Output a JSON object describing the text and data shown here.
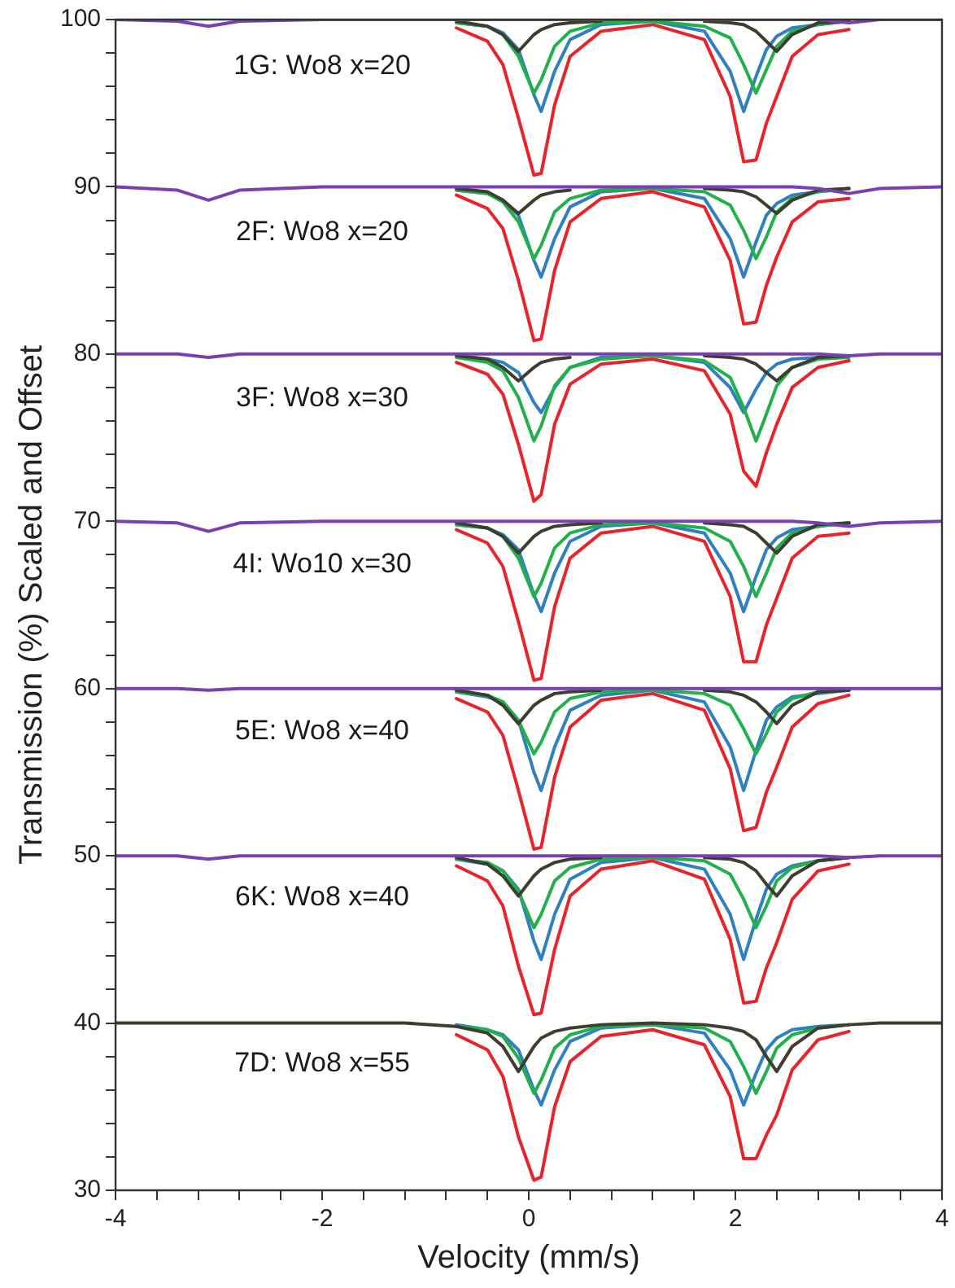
{
  "chart_data": {
    "type": "line",
    "xlabel": "Velocity (mm/s)",
    "ylabel": "Transmission (%) Scaled and Offset",
    "x": [
      -4,
      -3.4,
      -3.1,
      -2.8,
      -2,
      -1.2,
      -0.7,
      -0.4,
      -0.25,
      -0.1,
      0.05,
      0.12,
      0.25,
      0.4,
      0.7,
      1.2,
      1.7,
      1.95,
      2.08,
      2.2,
      2.3,
      2.4,
      2.55,
      2.8,
      3.1,
      3.4,
      4
    ],
    "xlim": [
      -4,
      4
    ],
    "xticks": [
      -4,
      {
        "value": -3.6,
        "label": null
      },
      {
        "value": -3.2,
        "label": null
      },
      {
        "value": -2.8,
        "label": null
      },
      {
        "value": -2.4,
        "label": null
      },
      -2,
      {
        "value": -1.6,
        "label": null
      },
      {
        "value": -1.2,
        "label": null
      },
      {
        "value": -0.8,
        "label": null
      },
      {
        "value": -0.4,
        "label": null
      },
      0,
      {
        "value": 0.4,
        "label": null
      },
      {
        "value": 0.8,
        "label": null
      },
      {
        "value": 1.2,
        "label": null
      },
      {
        "value": 1.6,
        "label": null
      },
      2,
      {
        "value": 2.4,
        "label": null
      },
      {
        "value": 2.8,
        "label": null
      },
      {
        "value": 3.2,
        "label": null
      },
      {
        "value": 3.6,
        "label": null
      },
      4
    ],
    "ylim": [
      30,
      100
    ],
    "yticks": [
      30,
      {
        "value": 32,
        "label": null
      },
      {
        "value": 34,
        "label": null
      },
      {
        "value": 36,
        "label": null
      },
      {
        "value": 38,
        "label": null
      },
      40,
      {
        "value": 42,
        "label": null
      },
      {
        "value": 44,
        "label": null
      },
      {
        "value": 46,
        "label": null
      },
      {
        "value": 48,
        "label": null
      },
      50,
      {
        "value": 52,
        "label": null
      },
      {
        "value": 54,
        "label": null
      },
      {
        "value": 56,
        "label": null
      },
      {
        "value": 58,
        "label": null
      },
      60,
      {
        "value": 62,
        "label": null
      },
      {
        "value": 64,
        "label": null
      },
      {
        "value": 66,
        "label": null
      },
      {
        "value": 68,
        "label": null
      },
      70,
      {
        "value": 72,
        "label": null
      },
      {
        "value": 74,
        "label": null
      },
      {
        "value": 76,
        "label": null
      },
      {
        "value": 78,
        "label": null
      },
      80,
      {
        "value": 82,
        "label": null
      },
      {
        "value": 84,
        "label": null
      },
      {
        "value": 86,
        "label": null
      },
      {
        "value": 88,
        "label": null
      },
      90,
      {
        "value": 92,
        "label": null
      },
      {
        "value": 94,
        "label": null
      },
      {
        "value": 96,
        "label": null
      },
      {
        "value": 98,
        "label": null
      },
      100
    ],
    "legend": false,
    "marker": "none",
    "line_style": "solid",
    "annotations": [
      "1G: Wo8 x=20",
      "2F: Wo8 x=20",
      "3F: Wo8 x=30",
      "4I: Wo10 x=30",
      "5E: Wo8 x=40",
      "6K: Wo8 x=40",
      "7D: Wo8 x=55"
    ],
    "series": [
      {
        "color": "#e8232a",
        "values": [
          null,
          null,
          null,
          null,
          null,
          null,
          99.5,
          98.7,
          97.3,
          94.1,
          90.7,
          90.8,
          94.9,
          97.8,
          99.3,
          99.7,
          98.8,
          95.4,
          91.5,
          91.6,
          93.8,
          95.4,
          97.8,
          99.1,
          99.4,
          null,
          null
        ]
      },
      {
        "color": "#2f7fc1",
        "values": [
          null,
          null,
          null,
          null,
          null,
          null,
          99.8,
          99.6,
          99.2,
          98.2,
          95.5,
          94.5,
          96.9,
          98.8,
          99.7,
          99.9,
          99.3,
          96.9,
          94.5,
          96.6,
          98.2,
          99,
          99.5,
          99.7,
          99.9,
          null,
          null
        ]
      },
      {
        "color": "#22b04b",
        "values": [
          null,
          null,
          null,
          null,
          null,
          null,
          99.8,
          99.6,
          99.1,
          97.8,
          95.6,
          96.4,
          98.4,
          99.3,
          99.8,
          99.9,
          99.6,
          98.9,
          97.3,
          95.6,
          97,
          98.4,
          99.3,
          99.7,
          99.9,
          null,
          null
        ]
      },
      {
        "color": "#3d3d30",
        "values": [
          null,
          null,
          null,
          null,
          null,
          null,
          99.9,
          99.6,
          99.1,
          98.1,
          99.1,
          99.4,
          99.7,
          99.8,
          99.9,
          null,
          99.9,
          99.8,
          99.7,
          99.3,
          98.7,
          98.1,
          99.1,
          99.8,
          99.9,
          null,
          null
        ]
      },
      {
        "color": "#7a3fb0",
        "values": [
          100,
          99.9,
          99.6,
          99.9,
          100,
          100,
          100,
          100,
          100,
          100,
          100,
          100,
          100,
          100,
          100,
          100,
          100,
          100,
          100,
          100,
          100,
          100,
          100,
          100,
          99.8,
          100,
          100
        ]
      },
      {
        "color": "#e8232a",
        "values": [
          null,
          null,
          null,
          null,
          null,
          null,
          89.5,
          88.7,
          87.5,
          84.4,
          80.8,
          80.9,
          85,
          87.9,
          89.3,
          89.7,
          88.8,
          85.6,
          81.8,
          81.9,
          84.1,
          85.8,
          87.9,
          89.1,
          89.3,
          null,
          null
        ]
      },
      {
        "color": "#2f7fc1",
        "values": [
          null,
          null,
          null,
          null,
          null,
          null,
          89.8,
          89.6,
          89.2,
          88.3,
          85.6,
          84.6,
          86.9,
          88.8,
          89.7,
          89.9,
          89.3,
          86.9,
          84.6,
          86.7,
          88.3,
          89,
          89.5,
          89.7,
          89.9,
          null,
          null
        ]
      },
      {
        "color": "#22b04b",
        "values": [
          null,
          null,
          null,
          null,
          null,
          null,
          89.8,
          89.6,
          89.1,
          87.9,
          85.7,
          86.5,
          88.5,
          89.3,
          89.8,
          89.9,
          89.7,
          88.9,
          87.4,
          85.7,
          87,
          88.5,
          89.3,
          89.7,
          89.9,
          null,
          null
        ]
      },
      {
        "color": "#3d3d30",
        "values": [
          null,
          null,
          null,
          null,
          null,
          null,
          89.9,
          89.7,
          89.2,
          88.4,
          89.2,
          89.5,
          89.7,
          89.8,
          null,
          null,
          89.9,
          89.8,
          89.7,
          89.4,
          88.9,
          88.4,
          89.2,
          89.8,
          89.9,
          null,
          null
        ]
      },
      {
        "color": "#7a3fb0",
        "values": [
          90,
          89.8,
          89.2,
          89.8,
          90,
          90,
          90,
          90,
          90,
          90,
          90,
          90,
          90,
          90,
          90,
          90,
          90,
          90,
          90,
          90,
          90,
          90,
          90,
          89.9,
          89.6,
          89.9,
          90
        ]
      },
      {
        "color": "#e8232a",
        "values": [
          null,
          null,
          null,
          null,
          null,
          null,
          79.5,
          78.8,
          77.6,
          74.6,
          71.2,
          71.6,
          75.8,
          78.2,
          79.4,
          79.7,
          79,
          76.4,
          73,
          72.1,
          74.1,
          75.8,
          78,
          79.2,
          79.6,
          null,
          null
        ]
      },
      {
        "color": "#2f7fc1",
        "values": [
          null,
          null,
          null,
          null,
          null,
          null,
          79.9,
          79.7,
          79.5,
          78.9,
          77.1,
          76.5,
          78,
          79.2,
          79.8,
          79.9,
          79.5,
          78,
          76.5,
          77.9,
          78.9,
          79.4,
          79.7,
          79.8,
          79.9,
          null,
          null
        ]
      },
      {
        "color": "#22b04b",
        "values": [
          null,
          null,
          null,
          null,
          null,
          null,
          79.8,
          79.5,
          79,
          77.4,
          74.8,
          75.7,
          78.1,
          79.2,
          79.7,
          79.9,
          79.6,
          78.6,
          76.8,
          74.8,
          76.4,
          78.1,
          79.2,
          79.7,
          79.8,
          null,
          null
        ]
      },
      {
        "color": "#3d3d30",
        "values": [
          null,
          null,
          null,
          null,
          null,
          null,
          79.9,
          79.7,
          79.2,
          78.4,
          79.2,
          79.5,
          79.7,
          79.8,
          null,
          null,
          79.9,
          79.8,
          79.7,
          79.4,
          78.9,
          78.4,
          79.2,
          79.8,
          79.9,
          null,
          null
        ]
      },
      {
        "color": "#7a3fb0",
        "values": [
          80,
          80,
          79.8,
          80,
          80,
          80,
          80,
          80,
          80,
          80,
          80,
          80,
          80,
          80,
          80,
          80,
          80,
          80,
          80,
          80,
          80,
          80,
          80,
          80,
          79.9,
          80,
          80
        ]
      },
      {
        "color": "#e8232a",
        "values": [
          null,
          null,
          null,
          null,
          null,
          null,
          69.5,
          68.7,
          67.3,
          64,
          60.5,
          60.6,
          64.9,
          67.8,
          69.3,
          69.7,
          68.8,
          65.5,
          61.6,
          61.6,
          63.8,
          65.4,
          67.8,
          69.1,
          69.3,
          null,
          null
        ]
      },
      {
        "color": "#2f7fc1",
        "values": [
          null,
          null,
          null,
          null,
          null,
          null,
          69.8,
          69.6,
          69.2,
          68.3,
          65.6,
          64.6,
          66.9,
          68.8,
          69.7,
          69.9,
          69.3,
          66.9,
          64.6,
          66.7,
          68.3,
          69,
          69.5,
          69.7,
          69.9,
          null,
          null
        ]
      },
      {
        "color": "#22b04b",
        "values": [
          null,
          null,
          null,
          null,
          null,
          null,
          69.8,
          69.6,
          69.1,
          67.8,
          65.5,
          66.3,
          68.4,
          69.3,
          69.8,
          69.9,
          69.6,
          68.8,
          67.3,
          65.5,
          66.9,
          68.4,
          69.3,
          69.7,
          69.9,
          null,
          null
        ]
      },
      {
        "color": "#3d3d30",
        "values": [
          null,
          null,
          null,
          null,
          null,
          null,
          69.9,
          69.6,
          69.1,
          68.1,
          69.1,
          69.4,
          69.7,
          69.8,
          69.9,
          null,
          69.9,
          69.8,
          69.7,
          69.3,
          68.7,
          68.1,
          69.1,
          69.8,
          69.9,
          null,
          null
        ]
      },
      {
        "color": "#7a3fb0",
        "values": [
          70,
          69.9,
          69.4,
          69.9,
          70,
          70,
          70,
          70,
          70,
          70,
          70,
          70,
          70,
          70,
          70,
          70,
          70,
          70,
          70,
          70,
          70,
          70,
          70,
          69.9,
          69.7,
          69.9,
          70
        ]
      },
      {
        "color": "#e8232a",
        "values": [
          null,
          null,
          null,
          null,
          null,
          null,
          59.4,
          58.6,
          57.2,
          53.9,
          50.4,
          50.5,
          54.7,
          57.7,
          59.3,
          59.7,
          58.7,
          55.2,
          51.5,
          51.7,
          53.8,
          55.3,
          57.7,
          59.1,
          59.6,
          null,
          null
        ]
      },
      {
        "color": "#2f7fc1",
        "values": [
          null,
          null,
          null,
          null,
          null,
          null,
          59.8,
          59.5,
          59.2,
          58.1,
          55,
          53.9,
          56.5,
          58.7,
          59.6,
          59.9,
          59.2,
          56.5,
          53.9,
          56.3,
          58.1,
          58.9,
          59.5,
          59.7,
          59.9,
          null,
          null
        ]
      },
      {
        "color": "#22b04b",
        "values": [
          null,
          null,
          null,
          null,
          null,
          null,
          59.8,
          59.6,
          59.2,
          58.1,
          56.1,
          56.8,
          58.6,
          59.4,
          59.8,
          59.9,
          59.7,
          59,
          57.6,
          56.1,
          57.3,
          58.6,
          59.4,
          59.8,
          59.9,
          null,
          null
        ]
      },
      {
        "color": "#3d3d30",
        "values": [
          null,
          null,
          null,
          null,
          null,
          null,
          59.9,
          59.6,
          59,
          57.9,
          59,
          59.3,
          59.7,
          59.8,
          59.9,
          null,
          59.9,
          59.8,
          59.6,
          59.2,
          58.6,
          57.9,
          59,
          59.8,
          59.9,
          null,
          null
        ]
      },
      {
        "color": "#7a3fb0",
        "values": [
          60,
          60,
          59.9,
          60,
          60,
          60,
          60,
          60,
          60,
          60,
          60,
          60,
          60,
          60,
          60,
          60,
          60,
          60,
          60,
          60,
          60,
          60,
          60,
          60,
          60,
          60,
          60
        ]
      },
      {
        "color": "#e8232a",
        "values": [
          null,
          null,
          null,
          null,
          null,
          null,
          49.4,
          48.5,
          47,
          43.4,
          40.5,
          40.6,
          44.4,
          47.6,
          49.2,
          49.7,
          48.6,
          45,
          41.2,
          41.3,
          43.3,
          44.8,
          47.4,
          49.1,
          49.5,
          null,
          null
        ]
      },
      {
        "color": "#2f7fc1",
        "values": [
          null,
          null,
          null,
          null,
          null,
          null,
          49.8,
          49.5,
          49.1,
          48,
          44.9,
          43.8,
          46.5,
          48.6,
          49.6,
          49.9,
          49.2,
          46.5,
          43.8,
          46.2,
          48,
          48.9,
          49.4,
          49.7,
          49.9,
          null,
          null
        ]
      },
      {
        "color": "#22b04b",
        "values": [
          null,
          null,
          null,
          null,
          null,
          null,
          49.8,
          49.6,
          49.1,
          47.9,
          45.7,
          46.5,
          48.5,
          49.3,
          49.8,
          49.9,
          49.7,
          48.9,
          47.4,
          45.7,
          47,
          48.5,
          49.3,
          49.7,
          49.9,
          null,
          null
        ]
      },
      {
        "color": "#3d3d30",
        "values": [
          null,
          null,
          null,
          null,
          null,
          null,
          49.9,
          49.5,
          48.8,
          47.6,
          48.8,
          49.2,
          49.6,
          49.8,
          49.9,
          null,
          49.9,
          49.8,
          49.6,
          49.1,
          48.3,
          47.6,
          48.8,
          49.7,
          49.9,
          null,
          null
        ]
      },
      {
        "color": "#7a3fb0",
        "values": [
          50,
          50,
          49.8,
          50,
          50,
          50,
          50,
          50,
          50,
          50,
          50,
          50,
          50,
          50,
          50,
          50,
          50,
          50,
          50,
          50,
          50,
          50,
          50,
          50,
          49.9,
          50,
          50
        ]
      },
      {
        "color": "#e8232a",
        "values": [
          null,
          null,
          null,
          null,
          null,
          null,
          39.3,
          38.4,
          36.8,
          33.2,
          30.6,
          30.8,
          35,
          37.7,
          39.2,
          39.6,
          38.7,
          35.6,
          31.9,
          31.9,
          33.3,
          34.5,
          37.2,
          39,
          39.5,
          null,
          null
        ]
      },
      {
        "color": "#2f7fc1",
        "values": [
          null,
          null,
          null,
          null,
          null,
          null,
          39.9,
          39.6,
          39.3,
          38.4,
          36,
          35.1,
          37.2,
          38.9,
          39.7,
          39.9,
          39.4,
          37.2,
          35.1,
          37,
          38.4,
          39.1,
          39.6,
          39.8,
          39.9,
          null,
          null
        ]
      },
      {
        "color": "#22b04b",
        "values": [
          null,
          null,
          null,
          null,
          null,
          null,
          39.8,
          39.6,
          39.2,
          37.9,
          35.8,
          36.6,
          38.5,
          39.3,
          39.8,
          39.9,
          39.7,
          38.9,
          37.4,
          35.8,
          37.1,
          38.5,
          39.3,
          39.7,
          39.9,
          null,
          null
        ]
      },
      {
        "color": "#3d3d30",
        "values": [
          40,
          40,
          40,
          40,
          40,
          40,
          39.8,
          39.4,
          38.6,
          37.1,
          38.6,
          39.1,
          39.5,
          39.7,
          39.9,
          40,
          39.9,
          39.7,
          39.5,
          39,
          38,
          37.1,
          38.6,
          39.7,
          39.9,
          40,
          40
        ]
      }
    ]
  }
}
